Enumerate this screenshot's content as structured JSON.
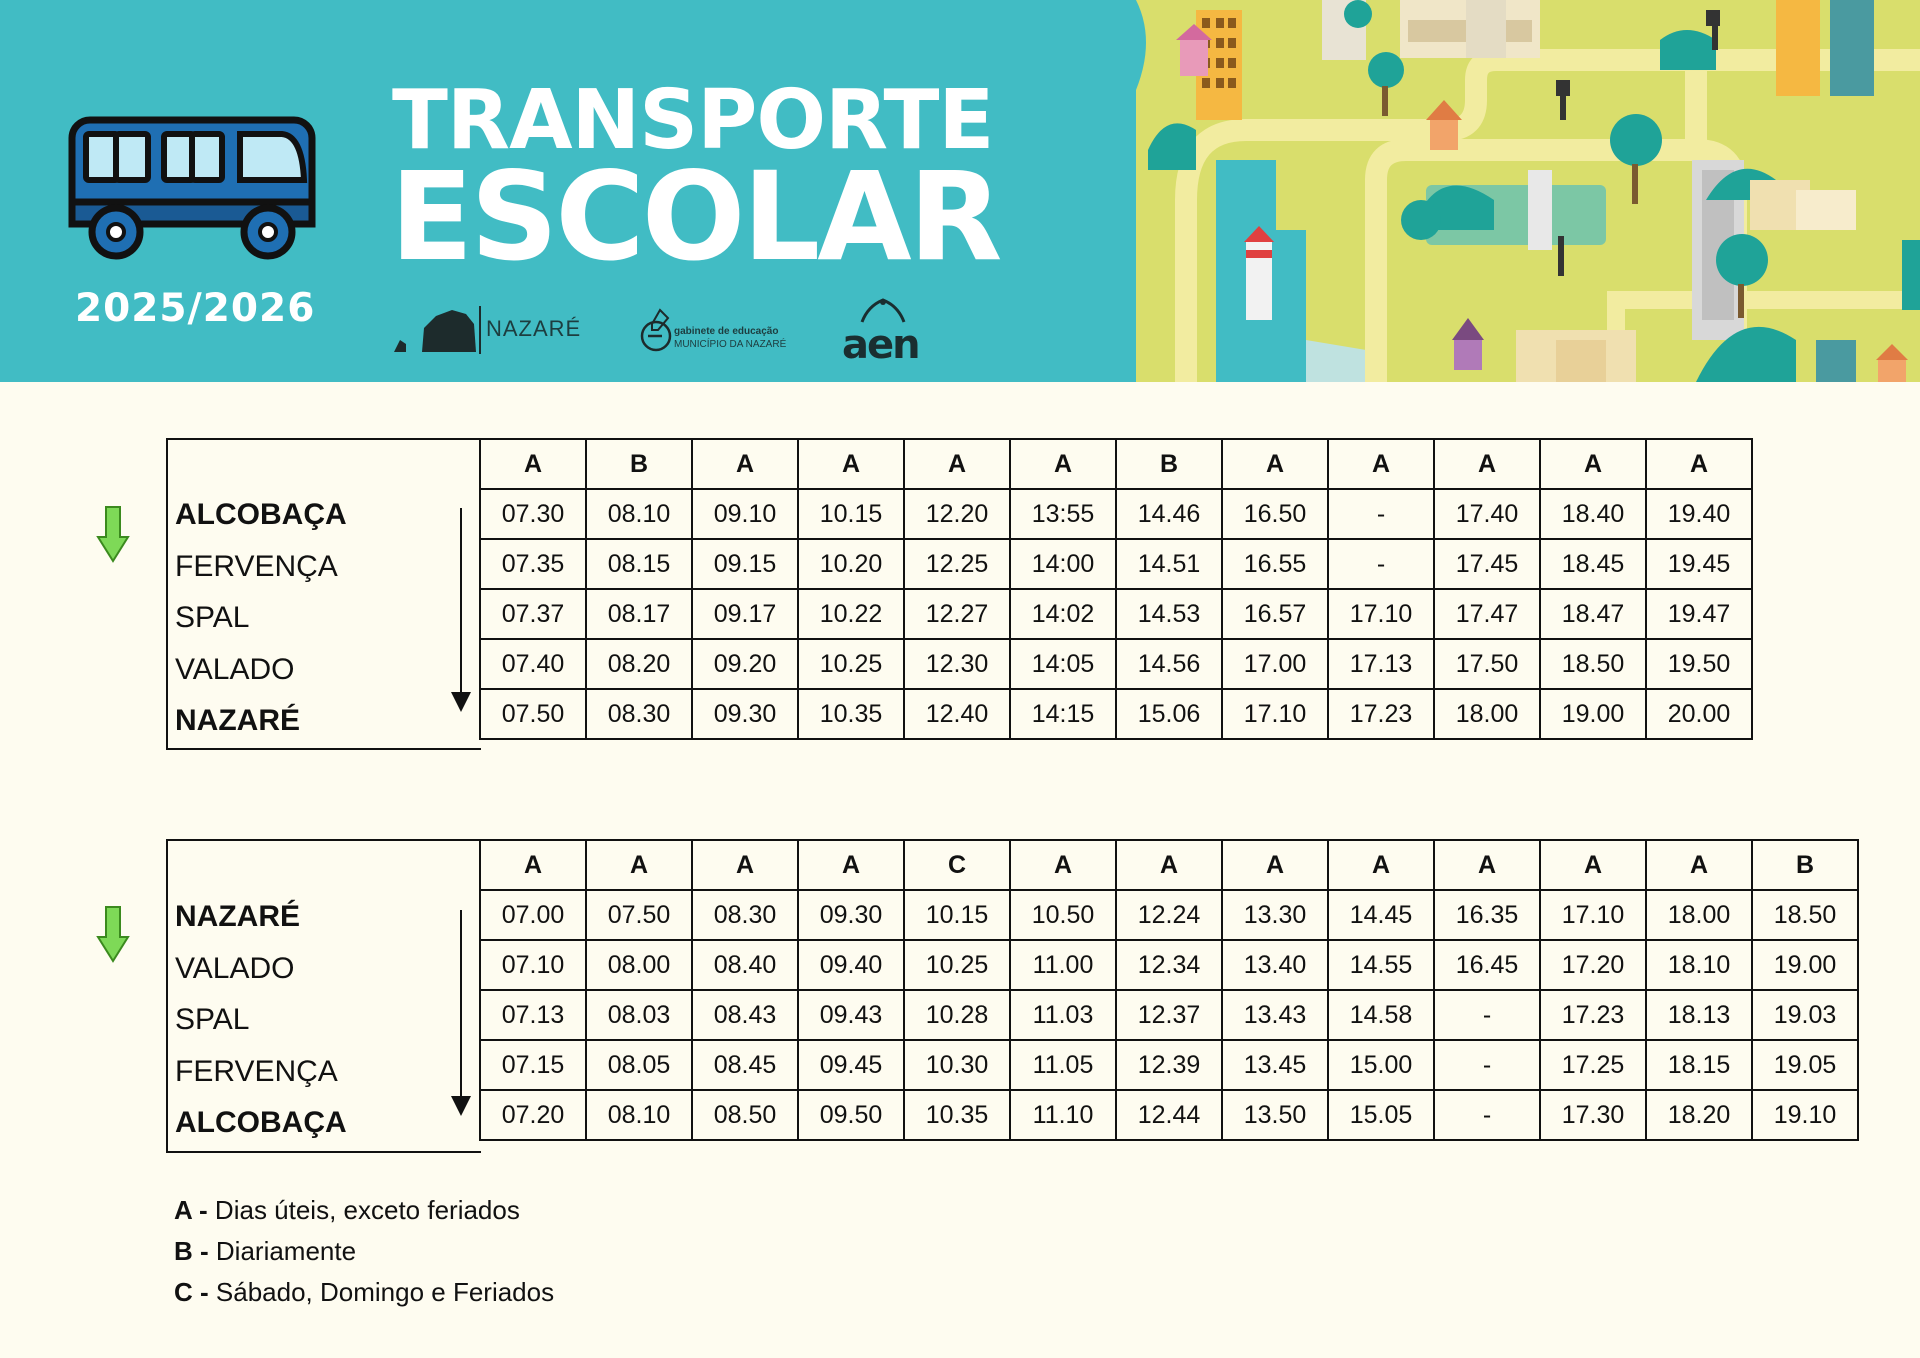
{
  "header": {
    "title_line1": "TRANSPORTE",
    "title_line2": "ESCOLAR",
    "year": "2025/2026",
    "logo_nazare": "NAZARÉ",
    "logo_gabinete_line1": "gabinete de educação",
    "logo_gabinete_line2": "MUNICÍPIO DA NAZARÉ",
    "logo_aen": "aen"
  },
  "table1": {
    "codes": [
      "A",
      "B",
      "A",
      "A",
      "A",
      "A",
      "B",
      "A",
      "A",
      "A",
      "A",
      "A"
    ],
    "stops": [
      {
        "name": "ALCOBAÇA",
        "bold": true,
        "times": [
          "07.30",
          "08.10",
          "09.10",
          "10.15",
          "12.20",
          "13:55",
          "14.46",
          "16.50",
          "-",
          "17.40",
          "18.40",
          "19.40"
        ]
      },
      {
        "name": "FERVENÇA",
        "bold": false,
        "times": [
          "07.35",
          "08.15",
          "09.15",
          "10.20",
          "12.25",
          "14:00",
          "14.51",
          "16.55",
          "-",
          "17.45",
          "18.45",
          "19.45"
        ]
      },
      {
        "name": "SPAL",
        "bold": false,
        "times": [
          "07.37",
          "08.17",
          "09.17",
          "10.22",
          "12.27",
          "14:02",
          "14.53",
          "16.57",
          "17.10",
          "17.47",
          "18.47",
          "19.47"
        ]
      },
      {
        "name": "VALADO",
        "bold": false,
        "times": [
          "07.40",
          "08.20",
          "09.20",
          "10.25",
          "12.30",
          "14:05",
          "14.56",
          "17.00",
          "17.13",
          "17.50",
          "18.50",
          "19.50"
        ]
      },
      {
        "name": "NAZARÉ",
        "bold": true,
        "times": [
          "07.50",
          "08.30",
          "09.30",
          "10.35",
          "12.40",
          "14:15",
          "15.06",
          "17.10",
          "17.23",
          "18.00",
          "19.00",
          "20.00"
        ]
      }
    ]
  },
  "table2": {
    "codes": [
      "A",
      "A",
      "A",
      "A",
      "C",
      "A",
      "A",
      "A",
      "A",
      "A",
      "A",
      "A",
      "B"
    ],
    "stops": [
      {
        "name": "NAZARÉ",
        "bold": true,
        "times": [
          "07.00",
          "07.50",
          "08.30",
          "09.30",
          "10.15",
          "10.50",
          "12.24",
          "13.30",
          "14.45",
          "16.35",
          "17.10",
          "18.00",
          "18.50"
        ]
      },
      {
        "name": "VALADO",
        "bold": false,
        "times": [
          "07.10",
          "08.00",
          "08.40",
          "09.40",
          "10.25",
          "11.00",
          "12.34",
          "13.40",
          "14.55",
          "16.45",
          "17.20",
          "18.10",
          "19.00"
        ]
      },
      {
        "name": "SPAL",
        "bold": false,
        "times": [
          "07.13",
          "08.03",
          "08.43",
          "09.43",
          "10.28",
          "11.03",
          "12.37",
          "13.43",
          "14.58",
          "-",
          "17.23",
          "18.13",
          "19.03"
        ]
      },
      {
        "name": "FERVENÇA",
        "bold": false,
        "times": [
          "07.15",
          "08.05",
          "08.45",
          "09.45",
          "10.30",
          "11.05",
          "12.39",
          "13.45",
          "15.00",
          "-",
          "17.25",
          "18.15",
          "19.05"
        ]
      },
      {
        "name": "ALCOBAÇA",
        "bold": true,
        "times": [
          "07.20",
          "08.10",
          "08.50",
          "09.50",
          "10.35",
          "11.10",
          "12.44",
          "13.50",
          "15.05",
          "-",
          "17.30",
          "18.20",
          "19.10"
        ]
      }
    ]
  },
  "legend": [
    {
      "code": "A -",
      "text": " Dias úteis, exceto feriados"
    },
    {
      "code": "B -",
      "text": " Diariamente"
    },
    {
      "code": "C -",
      "text": " Sábado, Domingo e Feriados"
    }
  ],
  "colors": {
    "banner": "#41bcc4",
    "page": "#fefcf0",
    "bus": "#1f6fb3",
    "arrow_green": "#7ed957"
  }
}
